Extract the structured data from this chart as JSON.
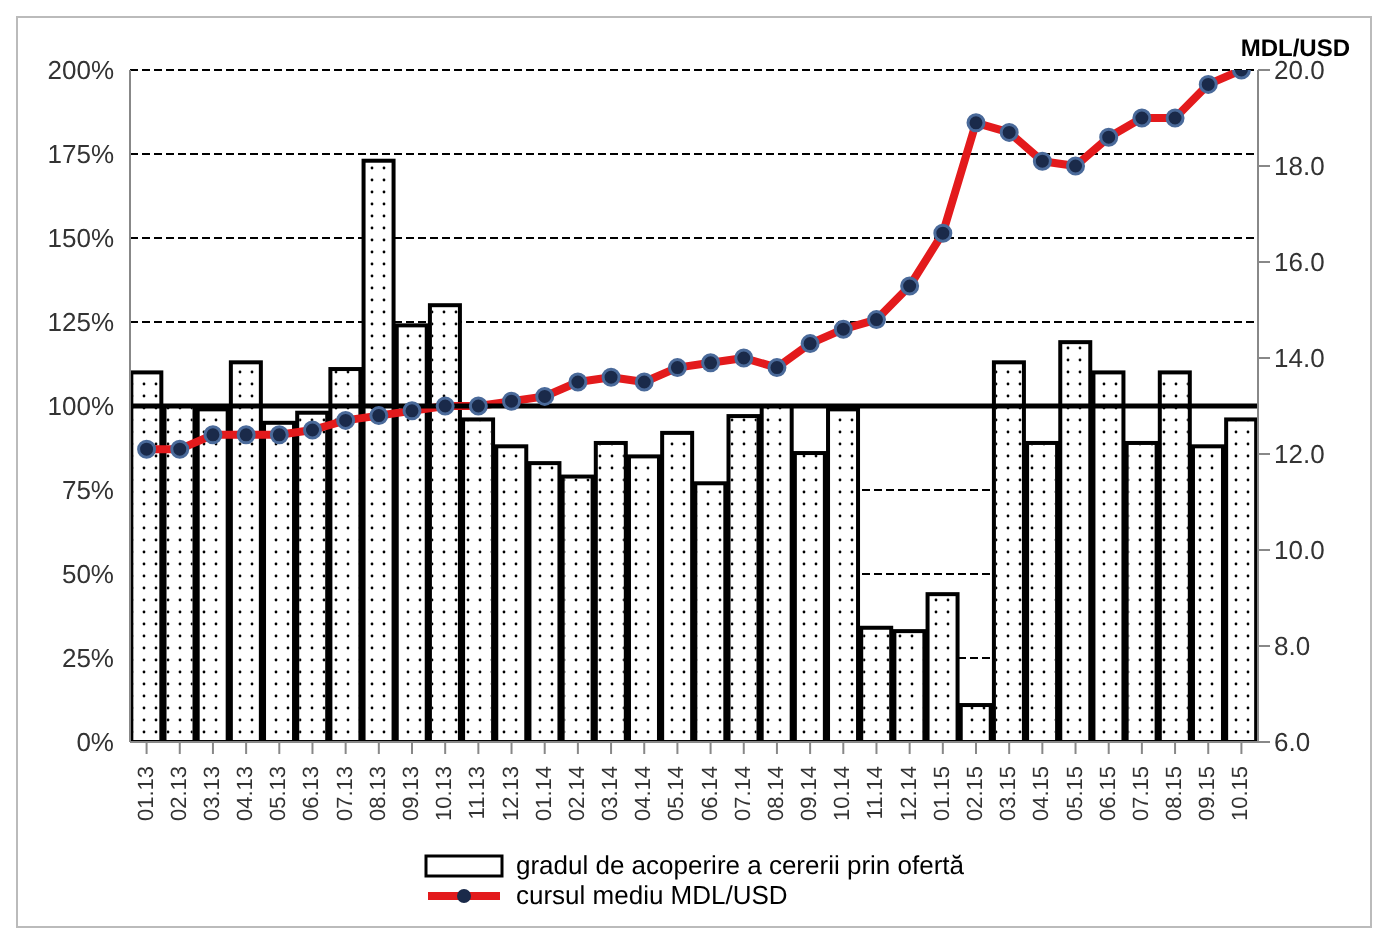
{
  "chart_data": {
    "type": "bar",
    "y2label": "MDL/USD",
    "categories": [
      "01.13",
      "02.13",
      "03.13",
      "04.13",
      "05.13",
      "06.13",
      "07.13",
      "08.13",
      "09.13",
      "10.13",
      "11.13",
      "12.13",
      "01.14",
      "02.14",
      "03.14",
      "04.14",
      "05.14",
      "06.14",
      "07.14",
      "08.14",
      "09.14",
      "10.14",
      "11.14",
      "12.14",
      "01.15",
      "02.15",
      "03.15",
      "04.15",
      "05.15",
      "06.15",
      "07.15",
      "08.15",
      "09.15",
      "10.15"
    ],
    "series": [
      {
        "name": "gradul de acoperire a cererii prin ofertă",
        "color": "#ffffff",
        "values": [
          110,
          100,
          99,
          113,
          95,
          98,
          111,
          173,
          124,
          130,
          96,
          88,
          83,
          79,
          89,
          85,
          92,
          77,
          97,
          100,
          86,
          99,
          34,
          33,
          44,
          11,
          113,
          89,
          119,
          110,
          89,
          110,
          88,
          96
        ]
      },
      {
        "name": "cursul mediu MDL/USD",
        "type": "line",
        "axis": "y2",
        "color": "#e31a1c",
        "values": [
          12.1,
          12.1,
          12.4,
          12.4,
          12.4,
          12.5,
          12.7,
          12.8,
          12.9,
          13.0,
          13.0,
          13.1,
          13.2,
          13.5,
          13.6,
          13.5,
          13.8,
          13.9,
          14.0,
          13.8,
          14.3,
          14.6,
          14.8,
          15.5,
          16.6,
          18.9,
          18.7,
          18.1,
          18.0,
          18.6,
          19.0,
          19.0,
          19.7,
          20.0
        ]
      }
    ],
    "ylim": [
      0,
      200
    ],
    "yticks": [
      {
        "value": 0,
        "label": "0%"
      },
      {
        "value": 25,
        "label": "25%"
      },
      {
        "value": 50,
        "label": "50%"
      },
      {
        "value": 75,
        "label": "75%"
      },
      {
        "value": 100,
        "label": "100%"
      },
      {
        "value": 125,
        "label": "125%"
      },
      {
        "value": 150,
        "label": "150%"
      },
      {
        "value": 175,
        "label": "175%"
      },
      {
        "value": 200,
        "label": "200%"
      }
    ],
    "y2lim": [
      6,
      20
    ],
    "y2ticks": [
      {
        "value": 6,
        "label": "6.0"
      },
      {
        "value": 8,
        "label": "8.0"
      },
      {
        "value": 10,
        "label": "10.0"
      },
      {
        "value": 12,
        "label": "12.0"
      },
      {
        "value": 14,
        "label": "14.0"
      },
      {
        "value": 16,
        "label": "16.0"
      },
      {
        "value": 18,
        "label": "18.0"
      },
      {
        "value": 20,
        "label": "20.0"
      }
    ],
    "ref_lines": [
      {
        "axis": "y",
        "value": 100,
        "color": "#000000"
      }
    ],
    "grid": "y",
    "legend": "bottom",
    "marker": "circle",
    "line_style": "solid"
  }
}
